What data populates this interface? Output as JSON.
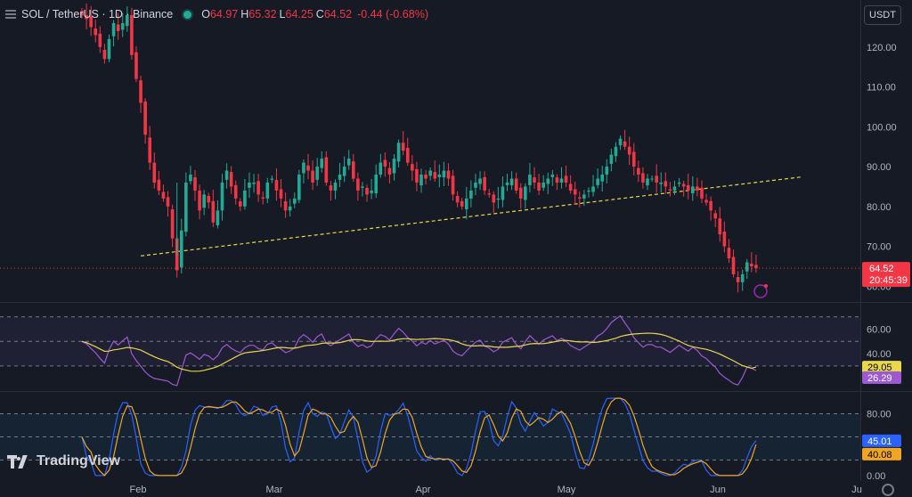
{
  "header": {
    "symbol": "SOL / TetherUS · 1D · Binance",
    "open_key": "O",
    "open": "64.97",
    "high_key": "H",
    "high": "65.32",
    "low_key": "L",
    "low": "64.25",
    "close_key": "C",
    "close": "64.52",
    "change": "-0.44 (-0.68%)"
  },
  "currency_button": "USDT",
  "branding": "TradingView",
  "colors": {
    "up": "#22ab94",
    "down": "#f23645",
    "ma": "#e8d84a",
    "rsi": "#9c59d1",
    "stoch_k": "#2962ff",
    "stoch_d": "#f0a623",
    "trend": "#e8d84a"
  },
  "chart_data": [
    {
      "type": "candlestick",
      "price_axis_ticks": [
        "120.00",
        "110.00",
        "100.00",
        "90.00",
        "80.00",
        "70.00",
        "60.00"
      ],
      "ylim": [
        56.5,
        131.8
      ],
      "time_axis_labels": [
        "Feb",
        "Mar",
        "Apr",
        "May",
        "Jun",
        "Ju"
      ],
      "last_price_label": "64.52",
      "countdown_label": "20:45:39",
      "trendline": {
        "from": {
          "day": 13,
          "price": 67.6
        },
        "to": {
          "day": 159,
          "price": 87.4
        }
      },
      "close_series": [
        128,
        127,
        125,
        123,
        120,
        117,
        122,
        126,
        124,
        126,
        128,
        118,
        112,
        106,
        98,
        91,
        86,
        84,
        82,
        80,
        72,
        64,
        74,
        86,
        88,
        84,
        79,
        83,
        81,
        76,
        79,
        86,
        89,
        85,
        82,
        80,
        84,
        86,
        86,
        83,
        82,
        86,
        87,
        84,
        82,
        79,
        80,
        82,
        88,
        91,
        89,
        86,
        90,
        92,
        86,
        84,
        86,
        88,
        90,
        92,
        87,
        84,
        85,
        83,
        84,
        88,
        91,
        90,
        88,
        92,
        96,
        94,
        91,
        89,
        86,
        88,
        87,
        89,
        87,
        88,
        89,
        87,
        83,
        81,
        80,
        82,
        84,
        86,
        87,
        84,
        83,
        81,
        82,
        85,
        86,
        87,
        84,
        82,
        85,
        88,
        86,
        84,
        86,
        87,
        88,
        86,
        87,
        86,
        84,
        83,
        82,
        83,
        84,
        85,
        87,
        88,
        90,
        93,
        95,
        97,
        95,
        93,
        90,
        88,
        86,
        87,
        87,
        86,
        86,
        85,
        84,
        85,
        86,
        85,
        84,
        85,
        84,
        82,
        81,
        79,
        77,
        73,
        70,
        67,
        63,
        61,
        63,
        66,
        65,
        64.52
      ],
      "rsi": {
        "ticks": [
          "60.00",
          "40.00",
          "20.00"
        ],
        "ylim": [
          11,
          80
        ],
        "bands": [
          70,
          50,
          30
        ],
        "value_label": "26.29",
        "ma_label": "29.05"
      },
      "stoch": {
        "ticks": [
          "80.00",
          "0.00"
        ],
        "ylim": [
          -7,
          107
        ],
        "bands": [
          80,
          50,
          20
        ],
        "k_label": "45.01",
        "d_label": "40.08"
      }
    }
  ]
}
